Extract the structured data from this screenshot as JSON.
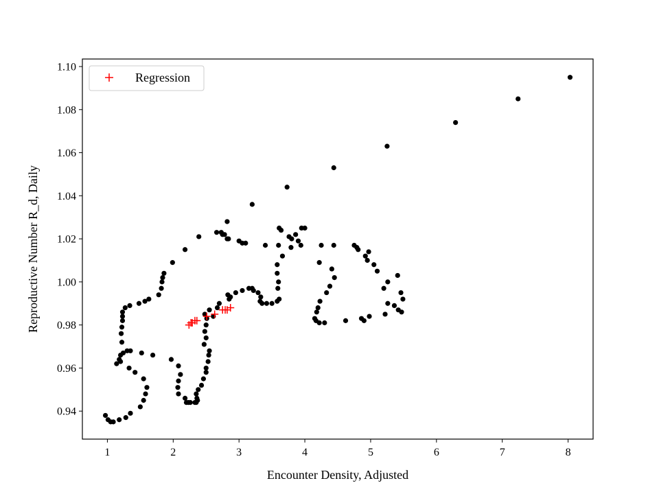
{
  "chart_data": {
    "type": "scatter",
    "title": "",
    "xlabel": "Encounter Density, Adjusted",
    "ylabel": "Reproductive Number R_d, Daily",
    "xlim": [
      0.62,
      8.38
    ],
    "ylim": [
      0.927,
      1.1035
    ],
    "xticks": [
      1,
      2,
      3,
      4,
      5,
      6,
      7,
      8
    ],
    "yticks": [
      0.94,
      0.96,
      0.98,
      1.0,
      1.02,
      1.04,
      1.06,
      1.08,
      1.1
    ],
    "ytick_labels": [
      "0.94",
      "0.96",
      "0.98",
      "1.00",
      "1.02",
      "1.04",
      "1.06",
      "1.08",
      "1.10"
    ],
    "grid": false,
    "legend": {
      "position": "top-left",
      "entries": [
        "Regression"
      ]
    },
    "colors": {
      "data": "#000000",
      "regression": "#ff0000"
    },
    "series": [
      {
        "marker": "dot",
        "color": "#000000",
        "points": [
          [
            0.97,
            0.938
          ],
          [
            1.01,
            0.936
          ],
          [
            1.05,
            0.935
          ],
          [
            1.09,
            0.935
          ],
          [
            1.18,
            0.936
          ],
          [
            1.28,
            0.937
          ],
          [
            1.35,
            0.939
          ],
          [
            1.5,
            0.942
          ],
          [
            1.55,
            0.945
          ],
          [
            1.58,
            0.948
          ],
          [
            1.6,
            0.951
          ],
          [
            1.55,
            0.955
          ],
          [
            1.42,
            0.958
          ],
          [
            1.33,
            0.96
          ],
          [
            1.2,
            0.963
          ],
          [
            1.14,
            0.962
          ],
          [
            1.18,
            0.964
          ],
          [
            1.2,
            0.966
          ],
          [
            1.24,
            0.967
          ],
          [
            1.3,
            0.968
          ],
          [
            1.35,
            0.968
          ],
          [
            1.52,
            0.967
          ],
          [
            1.69,
            0.966
          ],
          [
            1.22,
            0.972
          ],
          [
            1.21,
            0.976
          ],
          [
            1.22,
            0.979
          ],
          [
            1.23,
            0.982
          ],
          [
            1.23,
            0.984
          ],
          [
            1.23,
            0.986
          ],
          [
            1.27,
            0.988
          ],
          [
            1.34,
            0.989
          ],
          [
            1.48,
            0.99
          ],
          [
            1.57,
            0.991
          ],
          [
            1.63,
            0.992
          ],
          [
            1.78,
            0.994
          ],
          [
            1.82,
            0.997
          ],
          [
            1.83,
            1.0
          ],
          [
            1.84,
            1.002
          ],
          [
            1.86,
            1.004
          ],
          [
            1.99,
            1.009
          ],
          [
            2.18,
            1.015
          ],
          [
            2.39,
            1.021
          ],
          [
            2.66,
            1.023
          ],
          [
            2.73,
            1.023
          ],
          [
            2.78,
            1.022
          ],
          [
            2.75,
            1.022
          ],
          [
            2.82,
            1.02
          ],
          [
            2.84,
            1.02
          ],
          [
            2.82,
            1.028
          ],
          [
            3.0,
            1.019
          ],
          [
            3.05,
            1.018
          ],
          [
            3.1,
            1.018
          ],
          [
            3.2,
            1.036
          ],
          [
            3.4,
            1.017
          ],
          [
            3.61,
            1.025
          ],
          [
            3.64,
            1.024
          ],
          [
            3.6,
            1.017
          ],
          [
            3.66,
            1.012
          ],
          [
            3.76,
            1.021
          ],
          [
            3.8,
            1.02
          ],
          [
            3.86,
            1.022
          ],
          [
            3.9,
            1.019
          ],
          [
            3.95,
            1.025
          ],
          [
            4.0,
            1.025
          ],
          [
            3.79,
            1.016
          ],
          [
            3.94,
            1.017
          ],
          [
            4.25,
            1.017
          ],
          [
            4.44,
            1.017
          ],
          [
            4.75,
            1.017
          ],
          [
            4.79,
            1.016
          ],
          [
            4.81,
            1.015
          ],
          [
            4.92,
            1.012
          ],
          [
            4.97,
            1.014
          ],
          [
            4.95,
            1.01
          ],
          [
            5.05,
            1.008
          ],
          [
            5.1,
            1.005
          ],
          [
            4.22,
            1.009
          ],
          [
            4.41,
            1.006
          ],
          [
            4.45,
            1.002
          ],
          [
            4.38,
            0.998
          ],
          [
            4.33,
            0.995
          ],
          [
            4.23,
            0.991
          ],
          [
            4.2,
            0.988
          ],
          [
            4.18,
            0.986
          ],
          [
            4.15,
            0.983
          ],
          [
            4.17,
            0.982
          ],
          [
            4.22,
            0.981
          ],
          [
            4.3,
            0.981
          ],
          [
            4.62,
            0.982
          ],
          [
            4.86,
            0.983
          ],
          [
            4.9,
            0.982
          ],
          [
            4.98,
            0.984
          ],
          [
            5.22,
            0.985
          ],
          [
            5.26,
            0.99
          ],
          [
            5.36,
            0.989
          ],
          [
            5.42,
            0.987
          ],
          [
            5.47,
            0.986
          ],
          [
            5.49,
            0.992
          ],
          [
            5.46,
            0.995
          ],
          [
            5.41,
            1.003
          ],
          [
            5.26,
            1.0
          ],
          [
            5.2,
            0.997
          ],
          [
            3.73,
            1.044
          ],
          [
            4.44,
            1.053
          ],
          [
            5.25,
            1.063
          ],
          [
            6.29,
            1.074
          ],
          [
            7.24,
            1.085
          ],
          [
            8.03,
            1.095
          ],
          [
            3.58,
            1.008
          ],
          [
            3.58,
            1.004
          ],
          [
            3.6,
            1.0
          ],
          [
            3.59,
            0.997
          ],
          [
            3.61,
            0.992
          ],
          [
            3.58,
            0.991
          ],
          [
            3.5,
            0.99
          ],
          [
            3.42,
            0.99
          ],
          [
            3.35,
            0.99
          ],
          [
            3.32,
            0.991
          ],
          [
            3.33,
            0.993
          ],
          [
            3.29,
            0.995
          ],
          [
            3.22,
            0.996
          ],
          [
            3.15,
            0.997
          ],
          [
            3.2,
            0.997
          ],
          [
            3.05,
            0.996
          ],
          [
            2.95,
            0.995
          ],
          [
            2.87,
            0.993
          ],
          [
            2.83,
            0.994
          ],
          [
            2.85,
            0.992
          ],
          [
            2.7,
            0.99
          ],
          [
            2.67,
            0.988
          ],
          [
            2.61,
            0.984
          ],
          [
            2.55,
            0.987
          ],
          [
            2.48,
            0.985
          ],
          [
            2.51,
            0.983
          ],
          [
            2.5,
            0.98
          ],
          [
            2.48,
            0.977
          ],
          [
            2.5,
            0.974
          ],
          [
            2.47,
            0.971
          ],
          [
            2.55,
            0.968
          ],
          [
            2.54,
            0.966
          ],
          [
            2.53,
            0.963
          ],
          [
            2.5,
            0.96
          ],
          [
            2.5,
            0.958
          ],
          [
            2.46,
            0.955
          ],
          [
            2.43,
            0.952
          ],
          [
            2.38,
            0.95
          ],
          [
            2.35,
            0.948
          ],
          [
            2.36,
            0.946
          ],
          [
            2.37,
            0.945
          ],
          [
            2.35,
            0.944
          ],
          [
            2.33,
            0.944
          ],
          [
            2.26,
            0.944
          ],
          [
            2.23,
            0.944
          ],
          [
            2.2,
            0.944
          ],
          [
            2.18,
            0.946
          ],
          [
            2.08,
            0.948
          ],
          [
            2.07,
            0.951
          ],
          [
            2.08,
            0.954
          ],
          [
            2.11,
            0.957
          ],
          [
            2.08,
            0.961
          ],
          [
            1.97,
            0.964
          ]
        ]
      },
      {
        "name": "Regression",
        "marker": "plus",
        "color": "#ff0000",
        "points": [
          [
            2.24,
            0.98
          ],
          [
            2.27,
            0.981
          ],
          [
            2.29,
            0.981
          ],
          [
            2.33,
            0.982
          ],
          [
            2.36,
            0.982
          ],
          [
            2.51,
            0.984
          ],
          [
            2.63,
            0.985
          ],
          [
            2.75,
            0.987
          ],
          [
            2.79,
            0.987
          ],
          [
            2.82,
            0.987
          ],
          [
            2.87,
            0.988
          ]
        ]
      }
    ]
  }
}
